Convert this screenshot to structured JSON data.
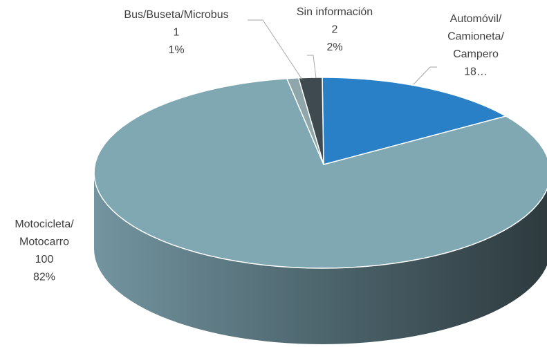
{
  "chart_data": {
    "type": "pie3d",
    "categories": [
      [
        "Automóvil/",
        "Camioneta/",
        "Campero"
      ],
      [
        "Motocicleta/",
        "Motocarro"
      ],
      [
        "Bus/Buseta/Microbus"
      ],
      [
        "Sin información"
      ]
    ],
    "values": [
      18,
      100,
      1,
      2
    ],
    "value_labels": [
      "18…",
      "100",
      "1",
      "2"
    ],
    "percentages": [
      null,
      82,
      1,
      2
    ],
    "percent_labels": [
      null,
      "82%",
      "1%",
      "2%"
    ],
    "colors": [
      "#2a80c6",
      "#7fa8b3",
      "#8fa6aa",
      "#3e4a4f"
    ]
  }
}
